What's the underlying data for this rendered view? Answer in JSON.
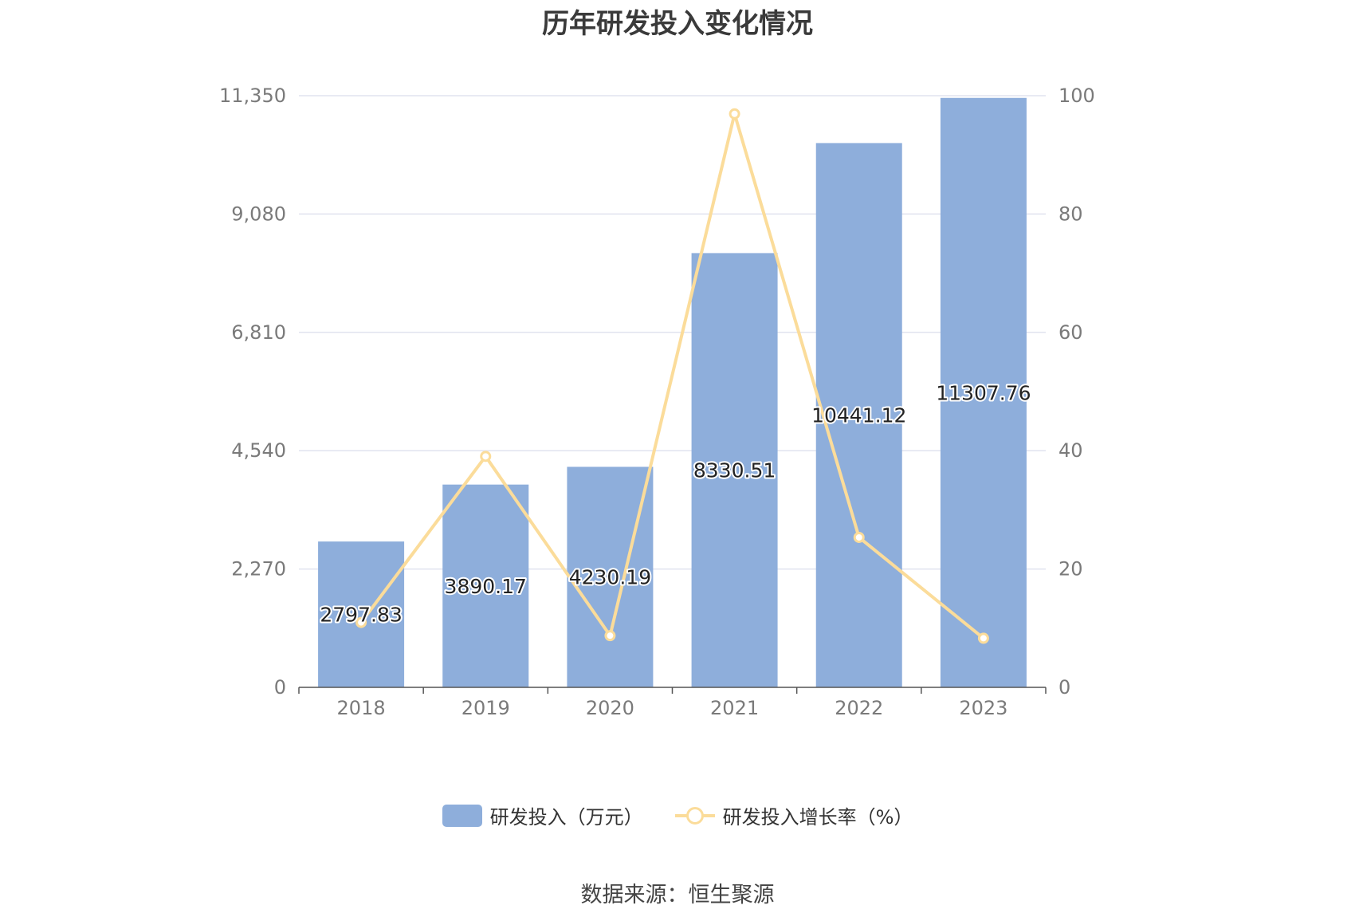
{
  "chart_data": {
    "type": "bar",
    "title": "历年研发投入变化情况",
    "categories": [
      "2018",
      "2019",
      "2020",
      "2021",
      "2022",
      "2023"
    ],
    "series": [
      {
        "name": "研发投入（万元）",
        "type": "bar",
        "axis": "left",
        "values": [
          2797.83,
          3890.17,
          4230.19,
          8330.51,
          10441.12,
          11307.76
        ],
        "labels": [
          "2797.83",
          "3890.17",
          "4230.19",
          "8330.51",
          "10441.12",
          "11307.76"
        ],
        "color": "#8eaedb"
      },
      {
        "name": "研发投入增长率（%）",
        "type": "line",
        "axis": "right",
        "values": [
          10.97,
          39.04,
          8.74,
          96.93,
          25.34,
          8.3
        ],
        "color": "#fbdc9a"
      }
    ],
    "y_left": {
      "min": 0,
      "max": 11350,
      "ticks": [
        0,
        2270,
        4540,
        6810,
        9080,
        11350
      ],
      "tick_labels": [
        "0",
        "2,270",
        "4,540",
        "6,810",
        "9,080",
        "11,350"
      ]
    },
    "y_right": {
      "min": 0,
      "max": 100,
      "ticks": [
        0,
        20,
        40,
        60,
        80,
        100
      ],
      "tick_labels": [
        "0",
        "20",
        "40",
        "60",
        "80",
        "100"
      ]
    },
    "grid": true,
    "legend_position": "bottom"
  },
  "source": "数据来源：恒生聚源"
}
